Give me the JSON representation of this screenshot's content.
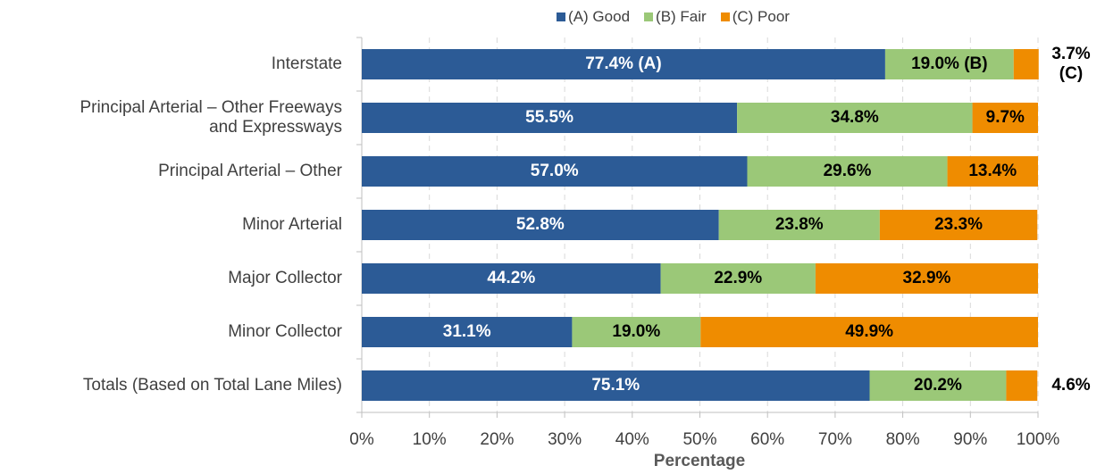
{
  "chart_data": {
    "type": "stacked-bar-horizontal",
    "categories": [
      "Interstate",
      "Principal Arterial – Other Freeways\nand Expressways",
      "Principal Arterial – Other",
      "Minor Arterial",
      "Major Collector",
      "Minor Collector",
      "Totals (Based on Total Lane Miles)"
    ],
    "series": [
      {
        "name": "(A) Good",
        "color": "#2c5b96",
        "values": [
          77.4,
          55.5,
          57.0,
          52.8,
          44.2,
          31.1,
          75.1
        ],
        "value_labels": [
          "77.4% (A)",
          "55.5%",
          "57.0%",
          "52.8%",
          "44.2%",
          "31.1%",
          "75.1%"
        ]
      },
      {
        "name": "(B) Fair",
        "color": "#9bc878",
        "values": [
          19.0,
          34.8,
          29.6,
          23.8,
          22.9,
          19.0,
          20.2
        ],
        "value_labels": [
          "19.0% (B)",
          "34.8%",
          "29.6%",
          "23.8%",
          "22.9%",
          "19.0%",
          "20.2%"
        ]
      },
      {
        "name": "(C) Poor",
        "color": "#ef8c00",
        "values": [
          3.7,
          9.7,
          13.4,
          23.3,
          32.9,
          49.9,
          4.6
        ],
        "value_labels": [
          "3.7%\n(C)",
          "9.7%",
          "13.4%",
          "23.3%",
          "32.9%",
          "49.9%",
          "4.6%"
        ]
      }
    ],
    "xlabel": "Percentage",
    "xlim": [
      0,
      100
    ],
    "xticks": [
      {
        "value": 0,
        "label": "0%"
      },
      {
        "value": 10,
        "label": "10%"
      },
      {
        "value": 20,
        "label": "20%"
      },
      {
        "value": 30,
        "label": "30%"
      },
      {
        "value": 40,
        "label": "40%"
      },
      {
        "value": 50,
        "label": "50%"
      },
      {
        "value": 60,
        "label": "60%"
      },
      {
        "value": 70,
        "label": "70%"
      },
      {
        "value": 80,
        "label": "80%"
      },
      {
        "value": 90,
        "label": "90%"
      },
      {
        "value": 100,
        "label": "100%"
      }
    ],
    "grid": true,
    "legend": "top"
  }
}
